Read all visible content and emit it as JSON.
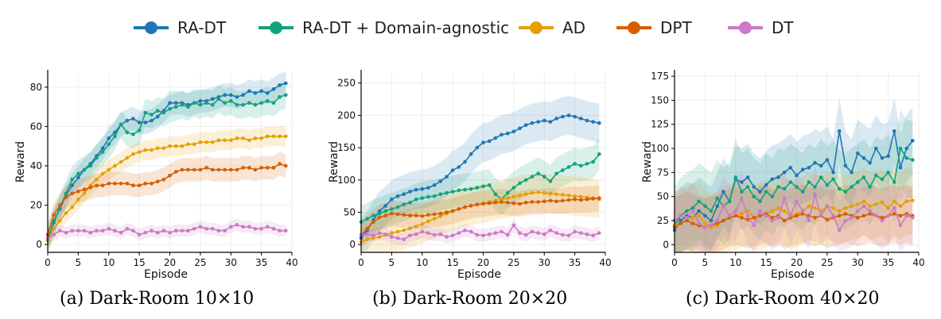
{
  "legend": [
    {
      "name": "RA-DT",
      "color": "#1f77b4"
    },
    {
      "name": "RA-DT + Domain-agnostic",
      "color": "#12a37a"
    },
    {
      "name": "AD",
      "color": "#e69f00"
    },
    {
      "name": "DPT",
      "color": "#d55e00"
    },
    {
      "name": "DT",
      "color": "#cc79c7"
    }
  ],
  "chart_data": [
    {
      "type": "line",
      "caption": "(a) Dark-Room 10×10",
      "xlabel": "Episode",
      "ylabel": "Reward",
      "xlim": [
        0,
        40
      ],
      "ylim": [
        -4,
        88
      ],
      "xticks": [
        0,
        5,
        10,
        15,
        20,
        25,
        30,
        35,
        40
      ],
      "yticks": [
        0,
        20,
        40,
        60,
        80
      ],
      "x": [
        0,
        1,
        2,
        3,
        4,
        5,
        6,
        7,
        8,
        9,
        10,
        11,
        12,
        13,
        14,
        15,
        16,
        17,
        18,
        19,
        20,
        21,
        22,
        23,
        24,
        25,
        26,
        27,
        28,
        29,
        30,
        31,
        32,
        33,
        34,
        35,
        36,
        37,
        38,
        39
      ],
      "series": [
        {
          "name": "RA-DT",
          "values": [
            2,
            12,
            18,
            25,
            30,
            34,
            38,
            41,
            45,
            49,
            54,
            57,
            61,
            63,
            64,
            62,
            62,
            63,
            65,
            68,
            72,
            72,
            72,
            71,
            72,
            73,
            73,
            74,
            75,
            76,
            76,
            75,
            76,
            78,
            77,
            78,
            77,
            79,
            81,
            82
          ],
          "band": 6
        },
        {
          "name": "RA-DT + Domain-agnostic",
          "values": [
            3,
            11,
            19,
            26,
            33,
            36,
            38,
            40,
            44,
            47,
            51,
            55,
            61,
            57,
            56,
            58,
            67,
            66,
            68,
            67,
            69,
            70,
            71,
            70,
            72,
            71,
            72,
            71,
            74,
            72,
            73,
            71,
            71,
            72,
            71,
            72,
            73,
            72,
            75,
            76
          ],
          "band": 7
        },
        {
          "name": "AD",
          "values": [
            2,
            8,
            12,
            16,
            19,
            23,
            26,
            30,
            33,
            36,
            38,
            40,
            42,
            44,
            46,
            47,
            48,
            48,
            49,
            49,
            50,
            50,
            50,
            51,
            51,
            52,
            52,
            52,
            53,
            53,
            53,
            54,
            54,
            53,
            54,
            54,
            55,
            55,
            55,
            55
          ],
          "band": 5
        },
        {
          "name": "DPT",
          "values": [
            5,
            15,
            20,
            24,
            26,
            27,
            28,
            29,
            30,
            30,
            31,
            31,
            31,
            31,
            30,
            30,
            31,
            31,
            32,
            33,
            35,
            37,
            38,
            38,
            38,
            38,
            39,
            38,
            38,
            38,
            38,
            38,
            39,
            39,
            38,
            39,
            39,
            39,
            41,
            40
          ],
          "band": 6
        },
        {
          "name": "DT",
          "values": [
            3,
            5,
            7,
            6,
            7,
            7,
            7,
            6,
            7,
            7,
            8,
            7,
            6,
            8,
            7,
            5,
            6,
            7,
            6,
            7,
            6,
            7,
            7,
            7,
            8,
            9,
            8,
            8,
            7,
            7,
            9,
            10,
            9,
            9,
            8,
            8,
            9,
            8,
            7,
            7
          ],
          "band": 3
        }
      ]
    },
    {
      "type": "line",
      "caption": "(b) Dark-Room 20×20",
      "xlabel": "Episode",
      "ylabel": "Reward",
      "xlim": [
        0,
        40
      ],
      "ylim": [
        -12,
        268
      ],
      "xticks": [
        0,
        5,
        10,
        15,
        20,
        25,
        30,
        35,
        40
      ],
      "yticks": [
        0,
        50,
        100,
        150,
        200,
        250
      ],
      "x": [
        0,
        1,
        2,
        3,
        4,
        5,
        6,
        7,
        8,
        9,
        10,
        11,
        12,
        13,
        14,
        15,
        16,
        17,
        18,
        19,
        20,
        21,
        22,
        23,
        24,
        25,
        26,
        27,
        28,
        29,
        30,
        31,
        32,
        33,
        34,
        35,
        36,
        37,
        38,
        39
      ],
      "series": [
        {
          "name": "RA-DT",
          "values": [
            10,
            22,
            38,
            52,
            60,
            70,
            75,
            78,
            82,
            85,
            86,
            88,
            92,
            98,
            105,
            115,
            120,
            128,
            140,
            150,
            158,
            160,
            165,
            170,
            172,
            175,
            180,
            185,
            188,
            190,
            192,
            190,
            195,
            198,
            200,
            198,
            195,
            192,
            190,
            188
          ],
          "band": 30
        },
        {
          "name": "RA-DT + Domain-agnostic",
          "values": [
            35,
            40,
            45,
            48,
            52,
            55,
            58,
            62,
            65,
            70,
            72,
            74,
            75,
            78,
            80,
            82,
            84,
            85,
            86,
            88,
            90,
            92,
            78,
            70,
            80,
            88,
            95,
            100,
            105,
            110,
            105,
            98,
            110,
            115,
            120,
            125,
            122,
            125,
            128,
            140
          ],
          "band": 25
        },
        {
          "name": "AD",
          "values": [
            4,
            8,
            10,
            12,
            15,
            18,
            20,
            22,
            25,
            28,
            32,
            36,
            40,
            44,
            48,
            52,
            55,
            58,
            60,
            62,
            64,
            66,
            68,
            70,
            72,
            74,
            76,
            78,
            80,
            81,
            80,
            79,
            78,
            77,
            76,
            75,
            74,
            73,
            72,
            70
          ],
          "band": 30
        },
        {
          "name": "DPT",
          "values": [
            15,
            25,
            35,
            42,
            45,
            48,
            47,
            46,
            45,
            45,
            44,
            46,
            47,
            48,
            50,
            52,
            55,
            58,
            60,
            62,
            63,
            64,
            65,
            66,
            65,
            64,
            63,
            65,
            66,
            66,
            67,
            68,
            67,
            68,
            69,
            70,
            69,
            70,
            71,
            72
          ],
          "band": 20
        },
        {
          "name": "DT",
          "values": [
            15,
            16,
            14,
            18,
            16,
            12,
            10,
            8,
            14,
            16,
            20,
            18,
            15,
            16,
            12,
            14,
            18,
            22,
            20,
            15,
            14,
            16,
            18,
            20,
            15,
            30,
            18,
            15,
            20,
            18,
            16,
            22,
            18,
            15,
            14,
            20,
            18,
            16,
            14,
            18
          ],
          "band": 10
        }
      ]
    },
    {
      "type": "line",
      "caption": "(c) Dark-Room 40×20",
      "xlabel": "Episode",
      "ylabel": "Reward",
      "xlim": [
        0,
        40
      ],
      "ylim": [
        -8,
        180
      ],
      "xticks": [
        0,
        5,
        10,
        15,
        20,
        25,
        30,
        35,
        40
      ],
      "yticks": [
        0,
        25,
        50,
        75,
        100,
        125,
        150,
        175
      ],
      "x": [
        0,
        1,
        2,
        3,
        4,
        5,
        6,
        7,
        8,
        9,
        10,
        11,
        12,
        13,
        14,
        15,
        16,
        17,
        18,
        19,
        20,
        21,
        22,
        23,
        24,
        25,
        26,
        27,
        28,
        29,
        30,
        31,
        32,
        33,
        34,
        35,
        36,
        37,
        38,
        39
      ],
      "series": [
        {
          "name": "RA-DT",
          "values": [
            15,
            25,
            30,
            28,
            35,
            30,
            25,
            40,
            55,
            45,
            68,
            65,
            70,
            60,
            55,
            62,
            68,
            70,
            75,
            80,
            72,
            78,
            80,
            85,
            82,
            88,
            75,
            118,
            82,
            75,
            95,
            90,
            85,
            100,
            90,
            92,
            118,
            80,
            100,
            108
          ],
          "band": 35
        },
        {
          "name": "RA-DT + Domain-agnostic",
          "values": [
            20,
            30,
            35,
            38,
            45,
            40,
            35,
            48,
            40,
            45,
            70,
            55,
            60,
            50,
            45,
            55,
            50,
            60,
            58,
            65,
            60,
            55,
            65,
            60,
            70,
            62,
            68,
            58,
            55,
            60,
            65,
            70,
            60,
            72,
            68,
            75,
            65,
            100,
            90,
            88
          ],
          "band": 40
        },
        {
          "name": "AD",
          "values": [
            20,
            22,
            25,
            28,
            30,
            22,
            18,
            20,
            25,
            28,
            30,
            32,
            35,
            28,
            30,
            32,
            35,
            38,
            35,
            30,
            32,
            35,
            40,
            38,
            35,
            40,
            38,
            35,
            38,
            40,
            42,
            45,
            40,
            42,
            44,
            38,
            45,
            40,
            45,
            46
          ],
          "band": 35
        },
        {
          "name": "DPT",
          "values": [
            18,
            22,
            25,
            22,
            20,
            18,
            20,
            22,
            25,
            28,
            30,
            28,
            26,
            28,
            30,
            32,
            28,
            30,
            25,
            28,
            30,
            32,
            30,
            28,
            30,
            26,
            28,
            30,
            32,
            30,
            28,
            30,
            32,
            30,
            28,
            30,
            32,
            30,
            32,
            30
          ],
          "band": 30
        },
        {
          "name": "DT",
          "values": [
            25,
            30,
            28,
            35,
            22,
            18,
            20,
            25,
            40,
            30,
            35,
            48,
            30,
            20,
            35,
            30,
            25,
            28,
            48,
            30,
            45,
            35,
            25,
            52,
            30,
            40,
            30,
            15,
            25,
            28,
            35,
            40,
            35,
            30,
            25,
            30,
            38,
            20,
            30,
            28
          ],
          "band": 30
        }
      ]
    }
  ]
}
